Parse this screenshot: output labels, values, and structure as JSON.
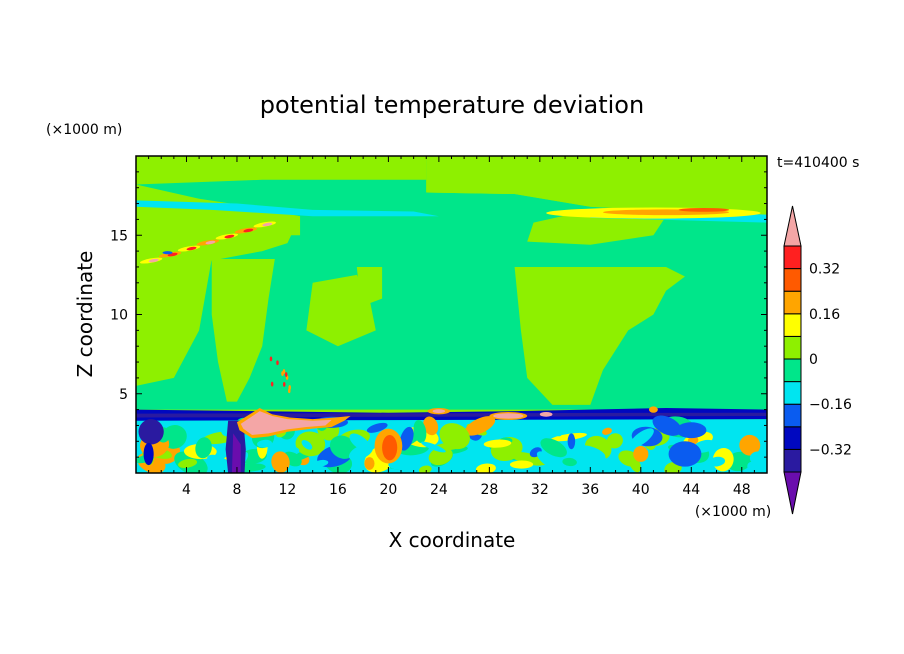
{
  "chart_data": {
    "type": "heatmap",
    "title": "potential temperature deviation",
    "xlabel": "X coordinate",
    "ylabel": "Z coordinate",
    "x_unit": "(×1000 m)",
    "y_unit": "(×1000 m)",
    "time_label": "t=410400 s",
    "xlim": [
      0,
      50
    ],
    "ylim": [
      0,
      20
    ],
    "x_ticks": [
      "4",
      "8",
      "12",
      "16",
      "20",
      "24",
      "28",
      "32",
      "36",
      "40",
      "44",
      "48"
    ],
    "y_ticks": [
      "5",
      "10",
      "15"
    ],
    "colorbar": {
      "labels": [
        "0.32",
        "0.16",
        "0",
        "−0.16",
        "−0.32"
      ],
      "label_values": [
        0.32,
        0.16,
        0,
        -0.16,
        -0.32
      ],
      "levels": [
        -0.4,
        -0.32,
        -0.24,
        -0.16,
        -0.08,
        0,
        0.08,
        0.16,
        0.24,
        0.32,
        0.4
      ],
      "colors": [
        "#6a0dad",
        "#2a1aa0",
        "#0008c0",
        "#0a5cf0",
        "#00e5f0",
        "#00e68a",
        "#8ef000",
        "#ffff00",
        "#ffa500",
        "#ff5a00",
        "#ff2020",
        "#f4a6a6"
      ]
    },
    "features": [
      {
        "type": "background",
        "value": 0.04,
        "color": "#8ef000"
      },
      {
        "type": "band",
        "z": [
          5.5,
          13
        ],
        "x": [
          0,
          50
        ],
        "value": -0.04,
        "color": "#00e68a"
      },
      {
        "type": "band",
        "z": [
          3.3,
          4.2
        ],
        "x": [
          0,
          50
        ],
        "value": -0.3,
        "color": "#2a1aa0"
      },
      {
        "type": "band",
        "z": [
          16,
          16.7
        ],
        "x": [
          30,
          49
        ],
        "value": 0.2,
        "color": "#ffff00"
      },
      {
        "type": "band",
        "z": [
          13,
          16
        ],
        "x": [
          1,
          13
        ],
        "value": 0.2,
        "color": "#ffa500"
      },
      {
        "type": "blob",
        "x": [
          8,
          14
        ],
        "z": [
          2.5,
          4
        ],
        "value": 0.45,
        "color": "#f4a6a6"
      },
      {
        "type": "blob",
        "x": [
          19,
          21
        ],
        "z": [
          0.5,
          2.8
        ],
        "value": 0.3,
        "color": "#ff5a00"
      },
      {
        "type": "blob",
        "x": [
          8,
          9
        ],
        "z": [
          0,
          3.5
        ],
        "value": -0.35,
        "color": "#2a1aa0"
      }
    ]
  }
}
